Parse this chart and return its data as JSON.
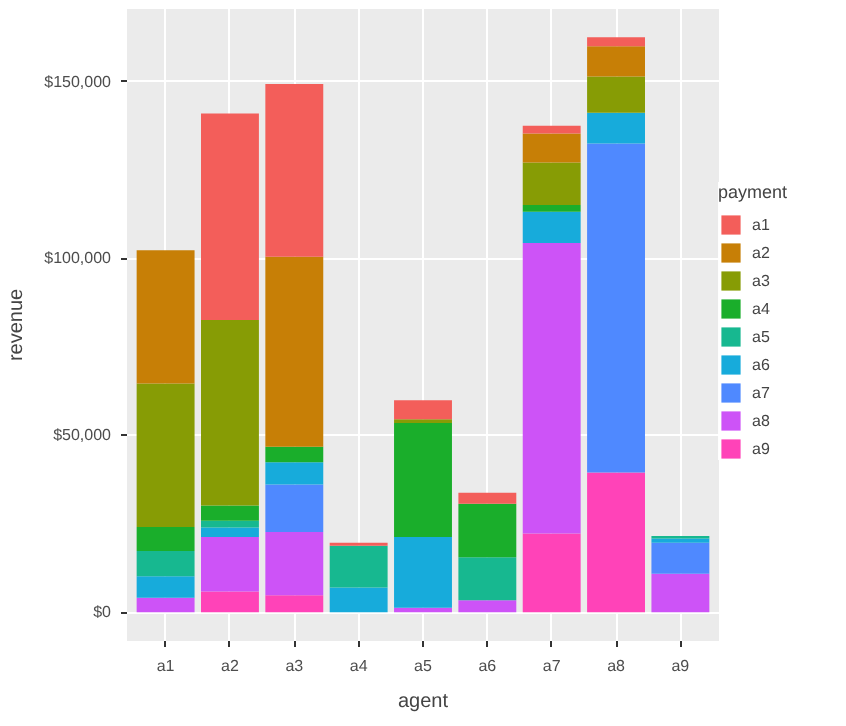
{
  "chart_data": {
    "type": "bar",
    "stacked": true,
    "xlabel": "agent",
    "ylabel": "revenue",
    "legend_title": "payment",
    "legend": "right",
    "grid": true,
    "categories": [
      "a1",
      "a2",
      "a3",
      "a4",
      "a5",
      "a6",
      "a7",
      "a8",
      "a9"
    ],
    "ylim": [
      -8100,
      170500
    ],
    "yticks": [
      {
        "value": 0,
        "label": "$0"
      },
      {
        "value": 50000,
        "label": "$50,000"
      },
      {
        "value": 100000,
        "label": "$100,000"
      },
      {
        "value": 150000,
        "label": "$150,000"
      }
    ],
    "series": [
      {
        "name": "a9",
        "color": "#ff43b8",
        "values": [
          null,
          5900,
          4800,
          null,
          null,
          null,
          22300,
          39500,
          null
        ]
      },
      {
        "name": "a8",
        "color": "#cd53f7",
        "values": [
          4100,
          15400,
          17900,
          null,
          1300,
          3400,
          82100,
          null,
          10900
        ]
      },
      {
        "name": "a7",
        "color": "#4f89ff",
        "values": [
          null,
          null,
          13400,
          null,
          null,
          null,
          null,
          93000,
          8800
        ]
      },
      {
        "name": "a6",
        "color": "#17abdb",
        "values": [
          6100,
          2700,
          6300,
          7000,
          20000,
          null,
          8800,
          8700,
          1200
        ]
      },
      {
        "name": "a5",
        "color": "#17b890",
        "values": [
          7100,
          1900,
          null,
          11800,
          null,
          12200,
          null,
          null,
          700
        ]
      },
      {
        "name": "a4",
        "color": "#1aae2b",
        "values": [
          6800,
          4300,
          4400,
          null,
          32200,
          15100,
          1900,
          null,
          null
        ]
      },
      {
        "name": "a3",
        "color": "#879c05",
        "values": [
          40600,
          52400,
          null,
          null,
          1100,
          null,
          12000,
          10200,
          null
        ]
      },
      {
        "name": "a2",
        "color": "#c77f06",
        "values": [
          37600,
          null,
          53700,
          null,
          null,
          null,
          8200,
          8600,
          null
        ]
      },
      {
        "name": "a1",
        "color": "#f35e5a",
        "values": [
          null,
          58400,
          48800,
          900,
          5300,
          3100,
          2200,
          2500,
          null
        ]
      }
    ]
  }
}
